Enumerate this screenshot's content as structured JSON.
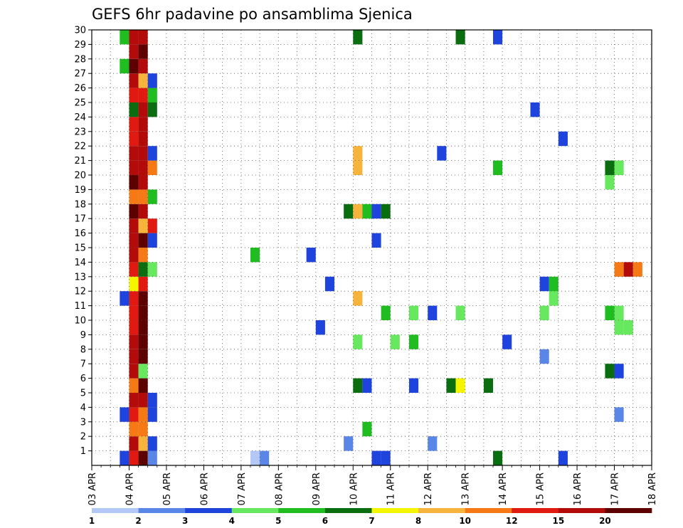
{
  "chart_data": {
    "type": "heatmap",
    "title": "GEFS 6hr padavine po ansamblima Sjenica",
    "x_labels": [
      "03 APR",
      "04 APR",
      "05 APR",
      "06 APR",
      "07 APR",
      "08 APR",
      "09 APR",
      "10 APR",
      "11 APR",
      "12 APR",
      "13 APR",
      "14 APR",
      "15 APR",
      "16 APR",
      "17 APR",
      "18 APR"
    ],
    "y_labels": [
      "1",
      "2",
      "3",
      "4",
      "5",
      "6",
      "7",
      "8",
      "9",
      "10",
      "11",
      "12",
      "13",
      "14",
      "15",
      "16",
      "17",
      "18",
      "19",
      "20",
      "21",
      "22",
      "23",
      "24",
      "25",
      "26",
      "27",
      "28",
      "29",
      "30"
    ],
    "x_range": [
      "03 APR",
      "18 APR"
    ],
    "time_step_hours": 6,
    "members": 30,
    "grid": true,
    "colorbar": {
      "levels": [
        1,
        2,
        3,
        4,
        5,
        6,
        7,
        8,
        10,
        12,
        15,
        20
      ],
      "level_labels": [
        "1",
        "2",
        "3",
        "4",
        "5",
        "6",
        "7",
        "8",
        "10",
        "12",
        "15",
        "20"
      ],
      "colors": [
        "#b3c8f7",
        "#5a86e8",
        "#1f43dd",
        "#67e85f",
        "#1fbd1f",
        "#0a6e10",
        "#f5f500",
        "#f6b43c",
        "#f57a15",
        "#e01a10",
        "#b30a0a",
        "#5c0000"
      ]
    },
    "cells": [
      {
        "m": 1,
        "d": "03 APR",
        "h": 18,
        "v": 3
      },
      {
        "m": 1,
        "d": "04 APR",
        "h": 0,
        "v": 12
      },
      {
        "m": 1,
        "d": "04 APR",
        "h": 6,
        "v": 20
      },
      {
        "m": 1,
        "d": "04 APR",
        "h": 12,
        "v": 2
      },
      {
        "m": 1,
        "d": "07 APR",
        "h": 6,
        "v": 1
      },
      {
        "m": 1,
        "d": "07 APR",
        "h": 12,
        "v": 2
      },
      {
        "m": 1,
        "d": "10 APR",
        "h": 12,
        "v": 3
      },
      {
        "m": 1,
        "d": "10 APR",
        "h": 18,
        "v": 3
      },
      {
        "m": 1,
        "d": "13 APR",
        "h": 18,
        "v": 6
      },
      {
        "m": 1,
        "d": "15 APR",
        "h": 12,
        "v": 3
      },
      {
        "m": 2,
        "d": "04 APR",
        "h": 0,
        "v": 15
      },
      {
        "m": 2,
        "d": "04 APR",
        "h": 6,
        "v": 8
      },
      {
        "m": 2,
        "d": "04 APR",
        "h": 12,
        "v": 3
      },
      {
        "m": 2,
        "d": "09 APR",
        "h": 18,
        "v": 2
      },
      {
        "m": 2,
        "d": "12 APR",
        "h": 0,
        "v": 2
      },
      {
        "m": 3,
        "d": "04 APR",
        "h": 0,
        "v": 10
      },
      {
        "m": 3,
        "d": "04 APR",
        "h": 6,
        "v": 10
      },
      {
        "m": 3,
        "d": "10 APR",
        "h": 6,
        "v": 5
      },
      {
        "m": 4,
        "d": "03 APR",
        "h": 18,
        "v": 3
      },
      {
        "m": 4,
        "d": "04 APR",
        "h": 0,
        "v": 12
      },
      {
        "m": 4,
        "d": "04 APR",
        "h": 6,
        "v": 10
      },
      {
        "m": 4,
        "d": "04 APR",
        "h": 12,
        "v": 3
      },
      {
        "m": 4,
        "d": "17 APR",
        "h": 0,
        "v": 2
      },
      {
        "m": 5,
        "d": "04 APR",
        "h": 0,
        "v": 15
      },
      {
        "m": 5,
        "d": "04 APR",
        "h": 6,
        "v": 15
      },
      {
        "m": 5,
        "d": "04 APR",
        "h": 12,
        "v": 3
      },
      {
        "m": 6,
        "d": "04 APR",
        "h": 0,
        "v": 10
      },
      {
        "m": 6,
        "d": "04 APR",
        "h": 6,
        "v": 20
      },
      {
        "m": 6,
        "d": "10 APR",
        "h": 0,
        "v": 6
      },
      {
        "m": 6,
        "d": "10 APR",
        "h": 6,
        "v": 3
      },
      {
        "m": 6,
        "d": "11 APR",
        "h": 12,
        "v": 3
      },
      {
        "m": 6,
        "d": "12 APR",
        "h": 12,
        "v": 6
      },
      {
        "m": 6,
        "d": "12 APR",
        "h": 18,
        "v": 7
      },
      {
        "m": 6,
        "d": "13 APR",
        "h": 12,
        "v": 6
      },
      {
        "m": 7,
        "d": "04 APR",
        "h": 0,
        "v": 15
      },
      {
        "m": 7,
        "d": "04 APR",
        "h": 6,
        "v": 4
      },
      {
        "m": 7,
        "d": "16 APR",
        "h": 18,
        "v": 6
      },
      {
        "m": 7,
        "d": "17 APR",
        "h": 0,
        "v": 3
      },
      {
        "m": 8,
        "d": "04 APR",
        "h": 0,
        "v": 15
      },
      {
        "m": 8,
        "d": "04 APR",
        "h": 6,
        "v": 20
      },
      {
        "m": 8,
        "d": "15 APR",
        "h": 0,
        "v": 2
      },
      {
        "m": 9,
        "d": "04 APR",
        "h": 0,
        "v": 15
      },
      {
        "m": 9,
        "d": "04 APR",
        "h": 6,
        "v": 20
      },
      {
        "m": 9,
        "d": "10 APR",
        "h": 0,
        "v": 4
      },
      {
        "m": 9,
        "d": "11 APR",
        "h": 0,
        "v": 4
      },
      {
        "m": 9,
        "d": "11 APR",
        "h": 12,
        "v": 5
      },
      {
        "m": 9,
        "d": "14 APR",
        "h": 0,
        "v": 3
      },
      {
        "m": 10,
        "d": "04 APR",
        "h": 0,
        "v": 12
      },
      {
        "m": 10,
        "d": "04 APR",
        "h": 6,
        "v": 20
      },
      {
        "m": 10,
        "d": "09 APR",
        "h": 0,
        "v": 3
      },
      {
        "m": 10,
        "d": "17 APR",
        "h": 0,
        "v": 4
      },
      {
        "m": 10,
        "d": "17 APR",
        "h": 6,
        "v": 4
      },
      {
        "m": 11,
        "d": "04 APR",
        "h": 0,
        "v": 12
      },
      {
        "m": 11,
        "d": "04 APR",
        "h": 6,
        "v": 20
      },
      {
        "m": 11,
        "d": "10 APR",
        "h": 18,
        "v": 5
      },
      {
        "m": 11,
        "d": "11 APR",
        "h": 12,
        "v": 4
      },
      {
        "m": 11,
        "d": "12 APR",
        "h": 0,
        "v": 3
      },
      {
        "m": 11,
        "d": "12 APR",
        "h": 18,
        "v": 4
      },
      {
        "m": 11,
        "d": "15 APR",
        "h": 0,
        "v": 4
      },
      {
        "m": 11,
        "d": "16 APR",
        "h": 18,
        "v": 5
      },
      {
        "m": 11,
        "d": "17 APR",
        "h": 0,
        "v": 4
      },
      {
        "m": 12,
        "d": "03 APR",
        "h": 18,
        "v": 3
      },
      {
        "m": 12,
        "d": "04 APR",
        "h": 0,
        "v": 12
      },
      {
        "m": 12,
        "d": "04 APR",
        "h": 6,
        "v": 20
      },
      {
        "m": 12,
        "d": "10 APR",
        "h": 0,
        "v": 8
      },
      {
        "m": 12,
        "d": "15 APR",
        "h": 6,
        "v": 4
      },
      {
        "m": 13,
        "d": "04 APR",
        "h": 0,
        "v": 7
      },
      {
        "m": 13,
        "d": "04 APR",
        "h": 6,
        "v": 12
      },
      {
        "m": 13,
        "d": "09 APR",
        "h": 6,
        "v": 3
      },
      {
        "m": 13,
        "d": "15 APR",
        "h": 0,
        "v": 3
      },
      {
        "m": 13,
        "d": "15 APR",
        "h": 6,
        "v": 5
      },
      {
        "m": 14,
        "d": "04 APR",
        "h": 0,
        "v": 12
      },
      {
        "m": 14,
        "d": "04 APR",
        "h": 6,
        "v": 6
      },
      {
        "m": 14,
        "d": "04 APR",
        "h": 12,
        "v": 4
      },
      {
        "m": 14,
        "d": "17 APR",
        "h": 0,
        "v": 10
      },
      {
        "m": 14,
        "d": "17 APR",
        "h": 6,
        "v": 15
      },
      {
        "m": 14,
        "d": "17 APR",
        "h": 12,
        "v": 10
      },
      {
        "m": 15,
        "d": "04 APR",
        "h": 0,
        "v": 15
      },
      {
        "m": 15,
        "d": "04 APR",
        "h": 6,
        "v": 10
      },
      {
        "m": 15,
        "d": "07 APR",
        "h": 6,
        "v": 5
      },
      {
        "m": 15,
        "d": "08 APR",
        "h": 18,
        "v": 3
      },
      {
        "m": 16,
        "d": "04 APR",
        "h": 0,
        "v": 15
      },
      {
        "m": 16,
        "d": "04 APR",
        "h": 6,
        "v": 20
      },
      {
        "m": 16,
        "d": "04 APR",
        "h": 12,
        "v": 3
      },
      {
        "m": 16,
        "d": "10 APR",
        "h": 12,
        "v": 3
      },
      {
        "m": 17,
        "d": "04 APR",
        "h": 0,
        "v": 15
      },
      {
        "m": 17,
        "d": "04 APR",
        "h": 6,
        "v": 8
      },
      {
        "m": 17,
        "d": "04 APR",
        "h": 12,
        "v": 12
      },
      {
        "m": 18,
        "d": "04 APR",
        "h": 0,
        "v": 20
      },
      {
        "m": 18,
        "d": "04 APR",
        "h": 6,
        "v": 15
      },
      {
        "m": 18,
        "d": "09 APR",
        "h": 18,
        "v": 6
      },
      {
        "m": 18,
        "d": "10 APR",
        "h": 0,
        "v": 8
      },
      {
        "m": 18,
        "d": "10 APR",
        "h": 6,
        "v": 5
      },
      {
        "m": 18,
        "d": "10 APR",
        "h": 12,
        "v": 3
      },
      {
        "m": 18,
        "d": "10 APR",
        "h": 18,
        "v": 6
      },
      {
        "m": 19,
        "d": "04 APR",
        "h": 0,
        "v": 10
      },
      {
        "m": 19,
        "d": "04 APR",
        "h": 6,
        "v": 10
      },
      {
        "m": 19,
        "d": "04 APR",
        "h": 12,
        "v": 5
      },
      {
        "m": 20,
        "d": "04 APR",
        "h": 0,
        "v": 20
      },
      {
        "m": 20,
        "d": "04 APR",
        "h": 6,
        "v": 15
      },
      {
        "m": 20,
        "d": "16 APR",
        "h": 18,
        "v": 4
      },
      {
        "m": 21,
        "d": "04 APR",
        "h": 0,
        "v": 15
      },
      {
        "m": 21,
        "d": "04 APR",
        "h": 6,
        "v": 15
      },
      {
        "m": 21,
        "d": "04 APR",
        "h": 12,
        "v": 10
      },
      {
        "m": 21,
        "d": "10 APR",
        "h": 0,
        "v": 8
      },
      {
        "m": 21,
        "d": "13 APR",
        "h": 18,
        "v": 5
      },
      {
        "m": 21,
        "d": "16 APR",
        "h": 18,
        "v": 6
      },
      {
        "m": 21,
        "d": "17 APR",
        "h": 0,
        "v": 4
      },
      {
        "m": 22,
        "d": "04 APR",
        "h": 0,
        "v": 15
      },
      {
        "m": 22,
        "d": "04 APR",
        "h": 6,
        "v": 15
      },
      {
        "m": 22,
        "d": "04 APR",
        "h": 12,
        "v": 3
      },
      {
        "m": 22,
        "d": "10 APR",
        "h": 0,
        "v": 8
      },
      {
        "m": 22,
        "d": "12 APR",
        "h": 6,
        "v": 3
      },
      {
        "m": 23,
        "d": "04 APR",
        "h": 0,
        "v": 12
      },
      {
        "m": 23,
        "d": "04 APR",
        "h": 6,
        "v": 15
      },
      {
        "m": 23,
        "d": "15 APR",
        "h": 12,
        "v": 3
      },
      {
        "m": 24,
        "d": "04 APR",
        "h": 0,
        "v": 12
      },
      {
        "m": 24,
        "d": "04 APR",
        "h": 6,
        "v": 15
      },
      {
        "m": 25,
        "d": "04 APR",
        "h": 0,
        "v": 6
      },
      {
        "m": 25,
        "d": "04 APR",
        "h": 6,
        "v": 15
      },
      {
        "m": 25,
        "d": "04 APR",
        "h": 12,
        "v": 6
      },
      {
        "m": 25,
        "d": "14 APR",
        "h": 18,
        "v": 3
      },
      {
        "m": 26,
        "d": "04 APR",
        "h": 0,
        "v": 12
      },
      {
        "m": 26,
        "d": "04 APR",
        "h": 6,
        "v": 12
      },
      {
        "m": 26,
        "d": "04 APR",
        "h": 12,
        "v": 5
      },
      {
        "m": 27,
        "d": "04 APR",
        "h": 0,
        "v": 15
      },
      {
        "m": 27,
        "d": "04 APR",
        "h": 6,
        "v": 8
      },
      {
        "m": 27,
        "d": "04 APR",
        "h": 12,
        "v": 3
      },
      {
        "m": 28,
        "d": "03 APR",
        "h": 18,
        "v": 5
      },
      {
        "m": 28,
        "d": "04 APR",
        "h": 0,
        "v": 20
      },
      {
        "m": 28,
        "d": "04 APR",
        "h": 6,
        "v": 15
      },
      {
        "m": 29,
        "d": "04 APR",
        "h": 0,
        "v": 15
      },
      {
        "m": 29,
        "d": "04 APR",
        "h": 6,
        "v": 20
      },
      {
        "m": 30,
        "d": "03 APR",
        "h": 18,
        "v": 5
      },
      {
        "m": 30,
        "d": "04 APR",
        "h": 0,
        "v": 15
      },
      {
        "m": 30,
        "d": "04 APR",
        "h": 6,
        "v": 15
      },
      {
        "m": 30,
        "d": "10 APR",
        "h": 0,
        "v": 6
      },
      {
        "m": 30,
        "d": "12 APR",
        "h": 18,
        "v": 6
      },
      {
        "m": 30,
        "d": "13 APR",
        "h": 18,
        "v": 3
      }
    ]
  }
}
